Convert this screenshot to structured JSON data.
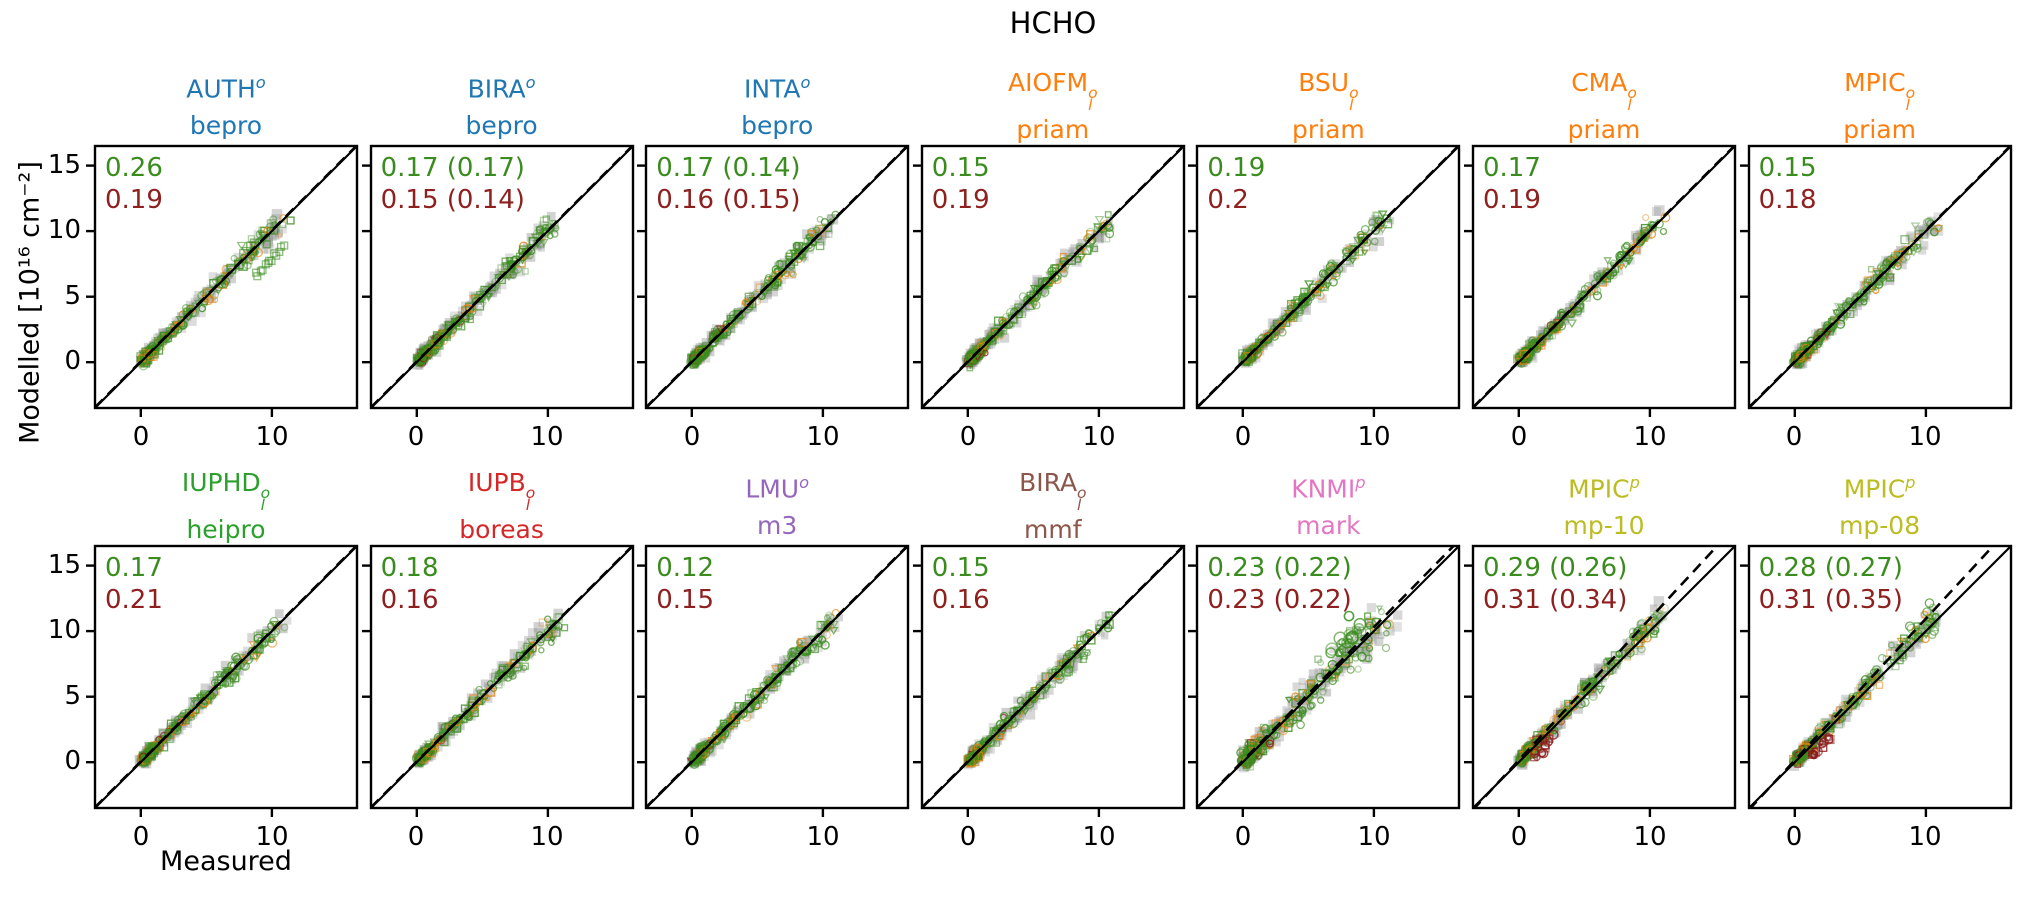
{
  "figure": {
    "title": "HCHO",
    "xlabel": "Measured",
    "ylabel": "Modelled [10¹⁶  cm⁻²]"
  },
  "axis": {
    "xlim": [
      -3.5,
      16.5
    ],
    "ylim": [
      -3.5,
      16.5
    ],
    "x_ticks": [
      "0",
      "10"
    ],
    "y_ticks": [
      "0",
      "5",
      "10",
      "15"
    ],
    "grid": false
  },
  "colors": {
    "stat_top": "#3a8c1e",
    "stat_bottom": "#8e2020",
    "scatter_green": "#3a8c1e",
    "scatter_orange": "#e8820e",
    "scatter_darkred": "#8b1a1a",
    "scatter_gray": "#9a9a9a",
    "line": "#000000",
    "group_bepro": "#1f77b4",
    "group_priam": "#ff7f0e",
    "group_heipro": "#2ca02c",
    "group_boreas": "#d62728",
    "group_m3": "#9467bd",
    "group_mmf": "#8c564b",
    "group_mark": "#e377c2",
    "group_mp": "#bcbd22"
  },
  "chart_data": {
    "type": "scatter",
    "description": "Modelled vs measured HCHO vertical columns; each panel shows points clustered along the 1:1 diagonal from about (0,0) to (11,11) with a solid 1:1 line and a dashed regression line. Top-left numbers are statistics (green top, dark red bottom).",
    "x_range_of_data": [
      0,
      11.5
    ],
    "panels": [
      {
        "site": "AUTH",
        "site_sub": "",
        "site_sup": "o",
        "algorithm": "bepro",
        "color": "#1f77b4",
        "stat_top": "0.26",
        "stat_bottom": "0.19",
        "fit": {
          "slope": 1.0,
          "intercept": 0.05
        },
        "features": [
          "branch_below"
        ]
      },
      {
        "site": "BIRA",
        "site_sub": "",
        "site_sup": "o",
        "algorithm": "bepro",
        "color": "#1f77b4",
        "stat_top": "0.17 (0.17)",
        "stat_bottom": "0.15 (0.14)",
        "fit": {
          "slope": 1.0,
          "intercept": 0.05
        },
        "features": []
      },
      {
        "site": "INTA",
        "site_sub": "",
        "site_sup": "o",
        "algorithm": "bepro",
        "color": "#1f77b4",
        "stat_top": "0.17 (0.14)",
        "stat_bottom": "0.16 (0.15)",
        "fit": {
          "slope": 1.0,
          "intercept": 0.05
        },
        "features": []
      },
      {
        "site": "AIOFM",
        "site_sub": "l",
        "site_sup": "o",
        "algorithm": "priam",
        "color": "#ff7f0e",
        "stat_top": "0.15",
        "stat_bottom": "0.19",
        "fit": {
          "slope": 1.0,
          "intercept": 0.05
        },
        "features": []
      },
      {
        "site": "BSU",
        "site_sub": "l",
        "site_sup": "o",
        "algorithm": "priam",
        "color": "#ff7f0e",
        "stat_top": "0.19",
        "stat_bottom": "0.2",
        "fit": {
          "slope": 1.0,
          "intercept": 0.05
        },
        "features": []
      },
      {
        "site": "CMA",
        "site_sub": "l",
        "site_sup": "o",
        "algorithm": "priam",
        "color": "#ff7f0e",
        "stat_top": "0.17",
        "stat_bottom": "0.19",
        "fit": {
          "slope": 1.0,
          "intercept": 0.05
        },
        "features": []
      },
      {
        "site": "MPIC",
        "site_sub": "l",
        "site_sup": "o",
        "algorithm": "priam",
        "color": "#ff7f0e",
        "stat_top": "0.15",
        "stat_bottom": "0.18",
        "fit": {
          "slope": 1.0,
          "intercept": 0.05
        },
        "features": []
      },
      {
        "site": "IUPHD",
        "site_sub": "l",
        "site_sup": "o",
        "algorithm": "heipro",
        "color": "#2ca02c",
        "stat_top": "0.17",
        "stat_bottom": "0.21",
        "fit": {
          "slope": 1.0,
          "intercept": 0.05
        },
        "features": []
      },
      {
        "site": "IUPB",
        "site_sub": "l",
        "site_sup": "o",
        "algorithm": "boreas",
        "color": "#d62728",
        "stat_top": "0.18",
        "stat_bottom": "0.16",
        "fit": {
          "slope": 1.0,
          "intercept": 0.05
        },
        "features": []
      },
      {
        "site": "LMU",
        "site_sub": "",
        "site_sup": "o",
        "algorithm": "m3",
        "color": "#9467bd",
        "stat_top": "0.12",
        "stat_bottom": "0.15",
        "fit": {
          "slope": 1.0,
          "intercept": 0.05
        },
        "features": []
      },
      {
        "site": "BIRA",
        "site_sub": "l",
        "site_sup": "o",
        "algorithm": "mmf",
        "color": "#8c564b",
        "stat_top": "0.15",
        "stat_bottom": "0.16",
        "fit": {
          "slope": 1.0,
          "intercept": 0.05
        },
        "features": []
      },
      {
        "site": "KNMI",
        "site_sub": "",
        "site_sup": "p",
        "algorithm": "mark",
        "color": "#e377c2",
        "stat_top": "0.23 (0.22)",
        "stat_bottom": "0.23 (0.22)",
        "fit": {
          "slope": 1.02,
          "intercept": 0.1
        },
        "features": [
          "wide_spread",
          "high_outliers"
        ]
      },
      {
        "site": "MPIC",
        "site_sub": "",
        "site_sup": "p",
        "algorithm": "mp-10",
        "color": "#bcbd22",
        "stat_top": "0.29 (0.26)",
        "stat_bottom": "0.31 (0.34)",
        "fit": {
          "slope": 1.08,
          "intercept": 0.15
        },
        "features": [
          "fit_above",
          "red_low_cluster",
          "orange_heavy",
          "faded_top"
        ]
      },
      {
        "site": "MPIC",
        "site_sub": "",
        "site_sup": "p",
        "algorithm": "mp-08",
        "color": "#bcbd22",
        "stat_top": "0.28 (0.27)",
        "stat_bottom": "0.31 (0.35)",
        "fit": {
          "slope": 1.08,
          "intercept": 0.15
        },
        "features": [
          "fit_above",
          "red_low_cluster",
          "orange_heavy",
          "faded_top"
        ]
      }
    ]
  }
}
